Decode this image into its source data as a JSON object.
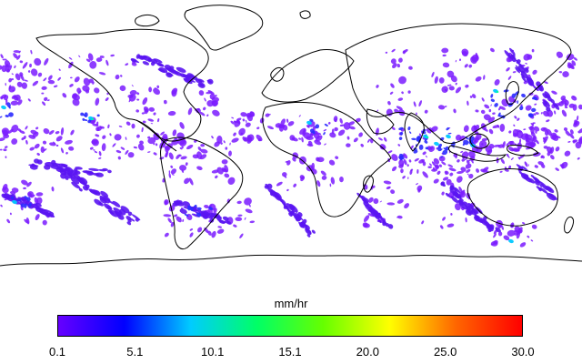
{
  "legend": {
    "unit_label": "mm/hr",
    "tick_labels": [
      "0.1",
      "5.1",
      "10.1",
      "15.1",
      "20.0",
      "25.0",
      "30.0"
    ],
    "range": [
      0.1,
      30.0
    ],
    "colors": [
      "#6600ff",
      "#0000ff",
      "#00ccff",
      "#00ff66",
      "#66ff00",
      "#ffff00",
      "#ff6600",
      "#ff0000"
    ]
  },
  "map": {
    "coastline_color": "#000000",
    "background_color": "#ffffff",
    "precip_colors": {
      "light": "#7a1bff",
      "light2": "#5a14f2",
      "moderate": "#2b2bff",
      "heavy": "#00c8ff",
      "very_heavy": "#00ff99"
    }
  }
}
